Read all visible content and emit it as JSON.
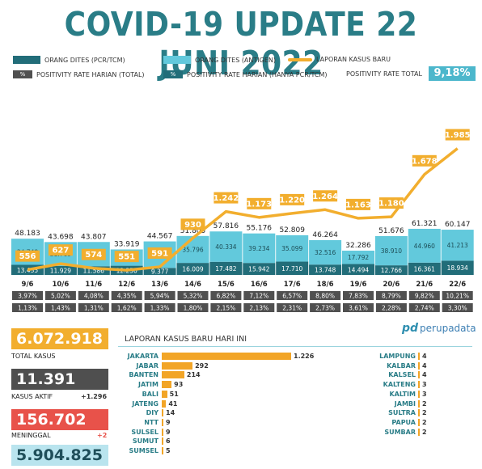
{
  "title": "COVID-19 UPDATE 22 JUNI 2022",
  "legend": {
    "pcr": "ORANG DITES (PCR/TCM)",
    "antigen": "ORANG DITES (ANTIGEN)",
    "cases": "LAPORAN KASUS BARU",
    "pos_total": "POSITIVITY RATE HARIAN (TOTAL)",
    "pos_pcr": "POSITIVITY RATE HARIAN (HANYA PCR/TCM)",
    "pct_symbol": "%",
    "pos_overall_label": "POSITIVITY RATE TOTAL",
    "pos_overall_value": "9,18%"
  },
  "colors": {
    "pcr": "#226d79",
    "antigen": "#62c9dc",
    "line": "#f2ae2e",
    "title": "#2a7d87"
  },
  "chart_data": {
    "type": "bar",
    "categories": [
      "9/6",
      "10/6",
      "11/6",
      "12/6",
      "13/6",
      "14/6",
      "15/6",
      "16/6",
      "17/6",
      "18/6",
      "19/6",
      "20/6",
      "21/6",
      "22/6"
    ],
    "series": [
      {
        "name": "ORANG DITES (PCR/TCM)",
        "values": [
          13435,
          11929,
          11586,
          12250,
          9377,
          16009,
          17482,
          15942,
          17710,
          13748,
          14494,
          12766,
          16361,
          18934
        ]
      },
      {
        "name": "ORANG DITES (ANTIGEN)",
        "values": [
          34748,
          31769,
          32221,
          21669,
          35190,
          35796,
          40334,
          39234,
          35099,
          32516,
          17792,
          38910,
          44960,
          41213
        ]
      }
    ],
    "totals": [
      48183,
      43698,
      43807,
      33919,
      44567,
      51805,
      57816,
      55176,
      52809,
      46264,
      32286,
      51676,
      61321,
      60147
    ],
    "line": {
      "name": "LAPORAN KASUS BARU",
      "values": [
        556,
        627,
        574,
        551,
        591,
        930,
        1242,
        1173,
        1220,
        1264,
        1163,
        1180,
        1678,
        1985
      ]
    },
    "positivity_total": [
      "3,97%",
      "5,02%",
      "4,08%",
      "4,35%",
      "5,94%",
      "5,32%",
      "6,82%",
      "7,12%",
      "6,57%",
      "8,80%",
      "7,83%",
      "8,79%",
      "9,82%",
      "10,21%"
    ],
    "positivity_pcr": [
      "1,13%",
      "1,43%",
      "1,31%",
      "1,62%",
      "1,33%",
      "1,80%",
      "2,15%",
      "2,13%",
      "2,31%",
      "2,73%",
      "3,61%",
      "2,28%",
      "2,74%",
      "3,30%"
    ]
  },
  "stats": {
    "total_cases": {
      "value": "6.072.918",
      "label": "TOTAL KASUS"
    },
    "active": {
      "value": "11.391",
      "label": "KASUS AKTIF",
      "delta": "+1.296"
    },
    "deaths": {
      "value": "156.702",
      "label": "MENINGGAL",
      "delta": "+2"
    },
    "recovered": {
      "value": "5.904.825"
    }
  },
  "provinces_title": "LAPORAN KASUS BARU HARI INI",
  "logo_text": "perupadata",
  "provinces_left": [
    {
      "name": "JAKARTA",
      "value": "1.226",
      "n": 1226
    },
    {
      "name": "JABAR",
      "value": "292",
      "n": 292
    },
    {
      "name": "BANTEN",
      "value": "214",
      "n": 214
    },
    {
      "name": "JATIM",
      "value": "93",
      "n": 93
    },
    {
      "name": "BALI",
      "value": "51",
      "n": 51
    },
    {
      "name": "JATENG",
      "value": "41",
      "n": 41
    },
    {
      "name": "DIY",
      "value": "14",
      "n": 14
    },
    {
      "name": "NTT",
      "value": "9",
      "n": 9
    },
    {
      "name": "SULSEL",
      "value": "9",
      "n": 9
    },
    {
      "name": "SUMUT",
      "value": "6",
      "n": 6
    },
    {
      "name": "SUMSEL",
      "value": "5",
      "n": 5
    }
  ],
  "provinces_right": [
    {
      "name": "LAMPUNG",
      "value": "4"
    },
    {
      "name": "KALBAR",
      "value": "4"
    },
    {
      "name": "KALSEL",
      "value": "4"
    },
    {
      "name": "KALTENG",
      "value": "3"
    },
    {
      "name": "KALTIM",
      "value": "3"
    },
    {
      "name": "JAMBI",
      "value": "2"
    },
    {
      "name": "SULTRA",
      "value": "2"
    },
    {
      "name": "PAPUA",
      "value": "2"
    },
    {
      "name": "SUMBAR",
      "value": "2"
    }
  ]
}
